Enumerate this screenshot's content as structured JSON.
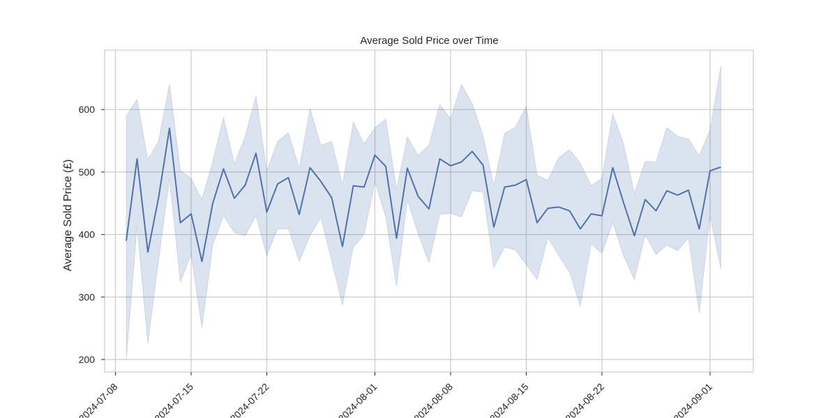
{
  "chart_data": {
    "type": "line",
    "title": "Average Sold Price over Time",
    "xlabel": "",
    "ylabel": "Average Sold Price (£)",
    "x_start": "2024-07-09",
    "x": [
      "2024-07-09",
      "2024-07-10",
      "2024-07-11",
      "2024-07-12",
      "2024-07-13",
      "2024-07-14",
      "2024-07-15",
      "2024-07-16",
      "2024-07-17",
      "2024-07-18",
      "2024-07-19",
      "2024-07-20",
      "2024-07-21",
      "2024-07-22",
      "2024-07-23",
      "2024-07-24",
      "2024-07-25",
      "2024-07-26",
      "2024-07-27",
      "2024-07-28",
      "2024-07-29",
      "2024-07-30",
      "2024-07-31",
      "2024-08-01",
      "2024-08-02",
      "2024-08-03",
      "2024-08-04",
      "2024-08-05",
      "2024-08-06",
      "2024-08-07",
      "2024-08-08",
      "2024-08-09",
      "2024-08-10",
      "2024-08-11",
      "2024-08-12",
      "2024-08-13",
      "2024-08-14",
      "2024-08-15",
      "2024-08-16",
      "2024-08-17",
      "2024-08-18",
      "2024-08-19",
      "2024-08-20",
      "2024-08-21",
      "2024-08-22",
      "2024-08-23",
      "2024-08-24",
      "2024-08-25",
      "2024-08-26",
      "2024-08-27",
      "2024-08-28",
      "2024-08-29",
      "2024-08-30",
      "2024-08-31",
      "2024-09-01",
      "2024-09-02"
    ],
    "series": [
      {
        "name": "",
        "color": "#4c72b0",
        "values": [
          390,
          521,
          372,
          460,
          570,
          419,
          433,
          357,
          450,
          505,
          458,
          479,
          530,
          436,
          481,
          491,
          432,
          507,
          485,
          459,
          381,
          478,
          476,
          527,
          509,
          394,
          506,
          461,
          441,
          521,
          510,
          516,
          533,
          511,
          412,
          476,
          479,
          488,
          419,
          442,
          444,
          438,
          409,
          433,
          430,
          507,
          451,
          398,
          456,
          438,
          470,
          463,
          471,
          409,
          502,
          508
        ],
        "ci_lower": [
          200,
          413,
          226,
          360,
          490,
          324,
          368,
          251,
          383,
          430,
          403,
          398,
          430,
          366,
          409,
          409,
          357,
          398,
          427,
          358,
          287,
          380,
          400,
          484,
          428,
          317,
          455,
          401,
          355,
          432,
          434,
          428,
          470,
          468,
          347,
          380,
          375,
          352,
          328,
          395,
          366,
          340,
          285,
          385,
          370,
          419,
          366,
          328,
          399,
          368,
          383,
          374,
          395,
          274,
          430,
          345
        ],
        "ci_upper": [
          590,
          616,
          520,
          550,
          641,
          503,
          490,
          456,
          517,
          588,
          513,
          557,
          622,
          502,
          549,
          563,
          506,
          601,
          543,
          549,
          480,
          580,
          545,
          571,
          585,
          472,
          556,
          527,
          543,
          608,
          585,
          640,
          610,
          558,
          478,
          562,
          572,
          605,
          495,
          487,
          523,
          536,
          514,
          478,
          490,
          593,
          545,
          466,
          517,
          516,
          571,
          557,
          553,
          526,
          568,
          670
        ]
      }
    ],
    "ylim": [
      180,
      695
    ],
    "xlim": [
      "2024-07-07",
      "2024-09-05"
    ],
    "yticks": [
      200,
      300,
      400,
      500,
      600
    ],
    "xticks": [
      "2024-07-08",
      "2024-07-15",
      "2024-07-22",
      "2024-08-01",
      "2024-08-08",
      "2024-08-15",
      "2024-08-22",
      "2024-09-01"
    ],
    "grid": true,
    "band_color": "#4c72b0",
    "grid_color": "#cccccc"
  }
}
